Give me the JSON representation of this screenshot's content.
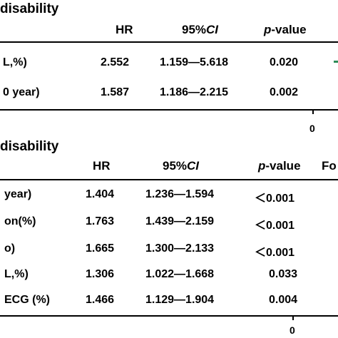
{
  "top": {
    "title": "disability",
    "headers": {
      "hr": "HR",
      "ci_prefix": "95%",
      "ci_italic": "CI",
      "p_italic": "p",
      "p_suffix": "-value"
    },
    "rows": [
      {
        "label": "L,%)",
        "hr": "2.552",
        "ci": "1.159—5.618",
        "p": "0.020"
      },
      {
        "label": "0 year)",
        "hr": "1.587",
        "ci": "1.186—2.215",
        "p": "0.002"
      }
    ],
    "axis_zero": "0",
    "marker_color": "#2e8b57"
  },
  "bottom": {
    "title": "disability",
    "headers": {
      "hr": "HR",
      "ci_prefix": "95%",
      "ci_italic": "CI",
      "p_italic": "p",
      "p_suffix": "-value",
      "extra": "Fo"
    },
    "rows": [
      {
        "label": "year)",
        "hr": "1.404",
        "ci": "1.236—1.594",
        "p": "＜0.001"
      },
      {
        "label": "on(%)",
        "hr": "1.763",
        "ci": "1.439—2.159",
        "p": "＜0.001"
      },
      {
        "label": "o)",
        "hr": "1.665",
        "ci": "1.300—2.133",
        "p": "＜0.001"
      },
      {
        "label": "L,%)",
        "hr": "1.306",
        "ci": "1.022—1.668",
        "p": "0.033"
      },
      {
        "label": "ECG (%)",
        "hr": "1.466",
        "ci": "1.129—1.904",
        "p": "0.004"
      }
    ],
    "axis_zero": "0"
  }
}
